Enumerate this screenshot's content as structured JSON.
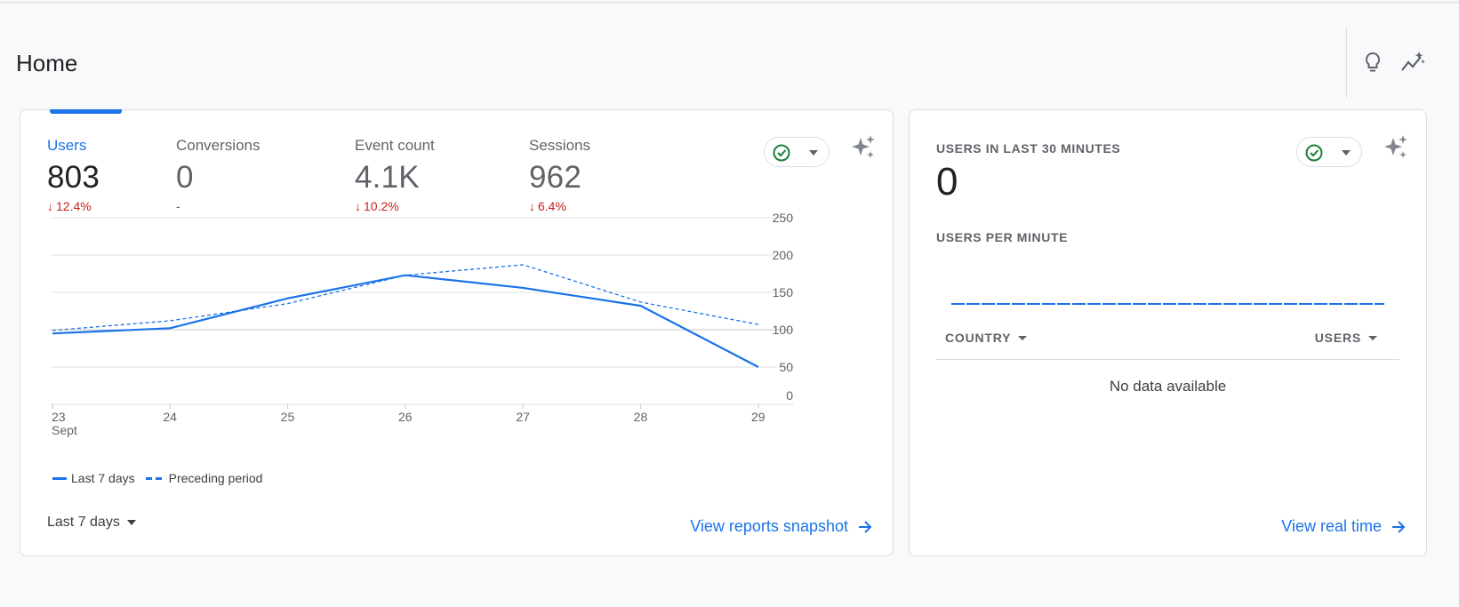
{
  "page": {
    "title": "Home"
  },
  "overview": {
    "metrics": [
      {
        "label": "Users",
        "value": "803",
        "delta": "12.4%",
        "direction": "down"
      },
      {
        "label": "Conversions",
        "value": "0",
        "delta": "-",
        "direction": "none"
      },
      {
        "label": "Event count",
        "value": "4.1K",
        "delta": "10.2%",
        "direction": "down"
      },
      {
        "label": "Sessions",
        "value": "962",
        "delta": "6.4%",
        "direction": "down"
      }
    ],
    "date_range_label": "Last 7 days",
    "link_label": "View reports snapshot"
  },
  "chart_data": {
    "type": "line",
    "x": [
      "23",
      "24",
      "25",
      "26",
      "27",
      "28",
      "29"
    ],
    "x_sublabel": "Sept",
    "yticks": [
      0,
      50,
      100,
      150,
      200,
      250
    ],
    "ylim": [
      0,
      250
    ],
    "series": [
      {
        "name": "Last 7 days",
        "style": "solid",
        "values": [
          95,
          102,
          142,
          173,
          156,
          132,
          50
        ]
      },
      {
        "name": "Preceding period",
        "style": "dashed",
        "values": [
          99,
          112,
          135,
          173,
          187,
          137,
          107
        ]
      }
    ],
    "colors": {
      "line": "#1a73e8",
      "grid": "#e0e0e0"
    }
  },
  "realtime": {
    "title": "USERS IN LAST 30 MINUTES",
    "value": "0",
    "per_minute_label": "USERS PER MINUTE",
    "col_country": "COUNTRY",
    "col_users": "USERS",
    "empty_text": "No data available",
    "link_label": "View real time"
  },
  "colors": {
    "accent": "#1a73e8",
    "negative": "#c5221f",
    "ok": "#188038"
  }
}
